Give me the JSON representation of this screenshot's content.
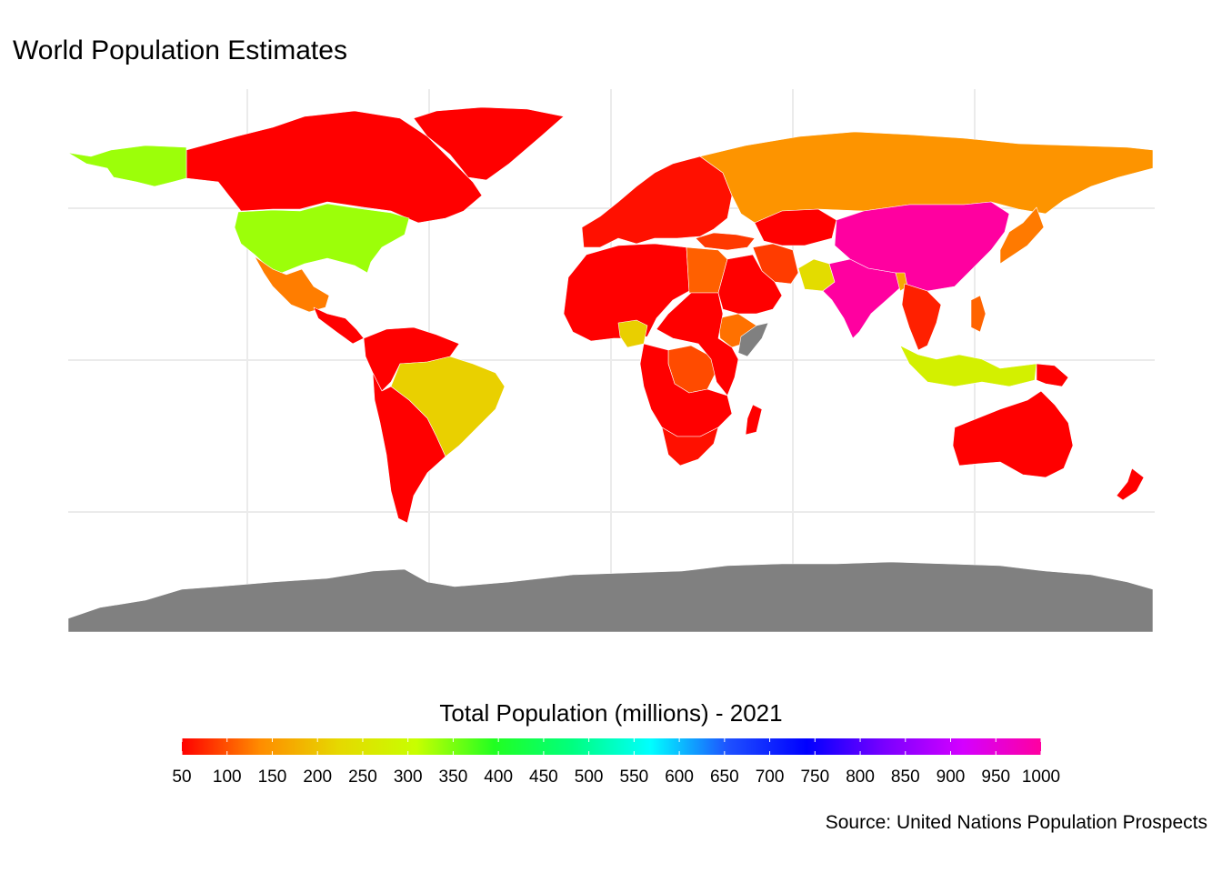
{
  "title": "World Population Estimates",
  "legend": {
    "title": "Total Population (millions) - 2021",
    "min": 50,
    "max": 1000,
    "ticks": [
      "50",
      "100",
      "150",
      "200",
      "250",
      "300",
      "350",
      "400",
      "450",
      "500",
      "550",
      "600",
      "650",
      "700",
      "750",
      "800",
      "850",
      "900",
      "950",
      "1000"
    ],
    "gradient_colors": [
      "#ff0000",
      "#ff8c00",
      "#e6d800",
      "#c8ff00",
      "#21ff21",
      "#00ff7f",
      "#00ffff",
      "#1e50ff",
      "#0000ff",
      "#7a00ff",
      "#d400ff",
      "#ff00a0"
    ]
  },
  "caption": "Source: United Nations Population Prospects",
  "colors": {
    "background": "#ffffff",
    "grid": "#ebebeb",
    "no_data": "#808080"
  },
  "chart_data": {
    "type": "choropleth",
    "metric": "Total Population (millions) - 2021",
    "scale_range": [
      50,
      1000
    ],
    "regions": [
      {
        "name": "Canada",
        "value": 38
      },
      {
        "name": "Alaska (USA)",
        "value": 332
      },
      {
        "name": "USA",
        "value": 332
      },
      {
        "name": "Mexico",
        "value": 127
      },
      {
        "name": "Central America",
        "value": 20
      },
      {
        "name": "Greenland",
        "value": 0.06
      },
      {
        "name": "Northern South America",
        "value": 40
      },
      {
        "name": "Brazil",
        "value": 214
      },
      {
        "name": "Southern South America",
        "value": 30
      },
      {
        "name": "North-West Africa",
        "value": 40
      },
      {
        "name": "Egypt",
        "value": 109
      },
      {
        "name": "Nigeria",
        "value": 213
      },
      {
        "name": "DR Congo",
        "value": 96
      },
      {
        "name": "Ethiopia",
        "value": 120
      },
      {
        "name": "Somalia",
        "value": null
      },
      {
        "name": "East Africa",
        "value": 50
      },
      {
        "name": "Southern Africa",
        "value": 35
      },
      {
        "name": "South Africa",
        "value": 60
      },
      {
        "name": "Madagascar",
        "value": 28
      },
      {
        "name": "Europe",
        "value": 60
      },
      {
        "name": "Russia",
        "value": 145
      },
      {
        "name": "Turkey",
        "value": 85
      },
      {
        "name": "Iran",
        "value": 87
      },
      {
        "name": "Middle East",
        "value": 35
      },
      {
        "name": "Central Asia",
        "value": 35
      },
      {
        "name": "Pakistan",
        "value": 231
      },
      {
        "name": "India",
        "value": 1393
      },
      {
        "name": "China",
        "value": 1412
      },
      {
        "name": "Bangladesh",
        "value": 169
      },
      {
        "name": "Japan",
        "value": 125
      },
      {
        "name": "South-East Asia",
        "value": 70
      },
      {
        "name": "Philippines",
        "value": 111
      },
      {
        "name": "Indonesia",
        "value": 276
      },
      {
        "name": "Papua New Guinea",
        "value": 9
      },
      {
        "name": "Australia",
        "value": 26
      },
      {
        "name": "New Zealand",
        "value": 5
      },
      {
        "name": "Antarctica",
        "value": null
      }
    ]
  }
}
